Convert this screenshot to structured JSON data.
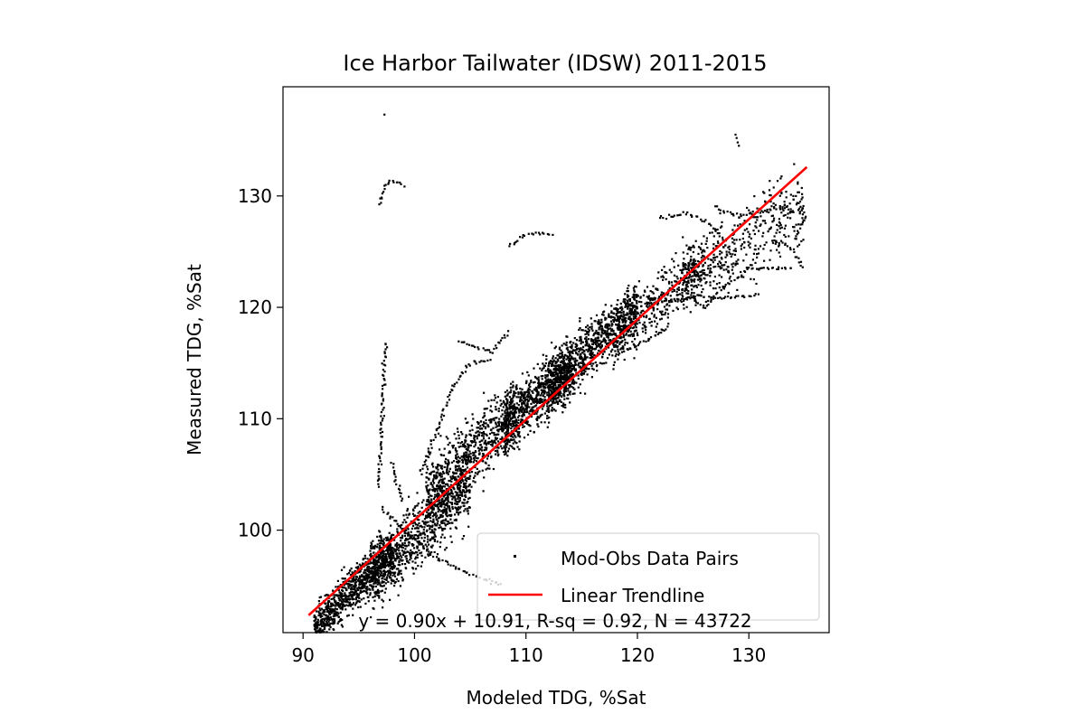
{
  "chart_data": {
    "type": "scatter",
    "title": "Ice Harbor Tailwater (IDSW) 2011-2015",
    "xlabel": "Modeled TDG, %Sat",
    "ylabel": "Measured TDG, %Sat",
    "xlim": [
      88.2,
      137.2
    ],
    "ylim": [
      90.8,
      139.8
    ],
    "xticks": [
      90,
      100,
      110,
      120,
      130
    ],
    "yticks": [
      100,
      110,
      120,
      130
    ],
    "grid": false,
    "legend_position": "bottom-right",
    "legend": {
      "scatter_label": "Mod-Obs Data Pairs",
      "trend_label": "Linear Trendline"
    },
    "scatter_color": "#000000",
    "trend_color": "#ff0000",
    "annotation": "y = 0.90x + 10.91, R-sq = 0.92, N = 43722",
    "trendline": {
      "slope": 0.9,
      "intercept": 10.91,
      "x_start": 90.5,
      "x_end": 135.2
    },
    "series": [
      {
        "name": "Mod-Obs Data Pairs",
        "clusters": [
          {
            "x_range": [
              91,
              98
            ],
            "slope": 0.98,
            "intercept": 2.0,
            "spread": 1.4,
            "n": 900
          },
          {
            "x_range": [
              96,
              105
            ],
            "slope": 0.95,
            "intercept": 4.5,
            "spread": 2.2,
            "n": 900
          },
          {
            "x_range": [
              101,
              109
            ],
            "slope": 0.95,
            "intercept": 7.0,
            "spread": 2.3,
            "n": 700
          },
          {
            "x_range": [
              108,
              114
            ],
            "slope": 0.9,
            "intercept": 12.0,
            "spread": 1.8,
            "n": 800
          },
          {
            "x_range": [
              112,
              120
            ],
            "slope": 0.9,
            "intercept": 12.0,
            "spread": 1.8,
            "n": 900
          },
          {
            "x_range": [
              118,
              126
            ],
            "slope": 0.85,
            "intercept": 17.0,
            "spread": 1.8,
            "n": 400
          },
          {
            "x_range": [
              124,
              135
            ],
            "slope": 0.6,
            "intercept": 48.0,
            "spread": 2.5,
            "n": 400
          }
        ],
        "paths": [
          {
            "points": [
              [
                97.0,
                129.2
              ],
              [
                97.3,
                130.8
              ],
              [
                97.8,
                131.3
              ],
              [
                98.5,
                131.2
              ],
              [
                99.2,
                130.8
              ]
            ]
          },
          {
            "points": [
              [
                96.8,
                104.0
              ],
              [
                97.0,
                108.0
              ],
              [
                97.2,
                113.0
              ],
              [
                97.4,
                117.0
              ]
            ]
          },
          {
            "points": [
              [
                100.5,
                105.0
              ],
              [
                102.0,
                109.0
              ],
              [
                103.5,
                113.0
              ],
              [
                105.0,
                115.0
              ],
              [
                107.0,
                115.3
              ]
            ]
          },
          {
            "points": [
              [
                104.0,
                117.0
              ],
              [
                105.5,
                116.5
              ],
              [
                107.0,
                116.0
              ],
              [
                108.5,
                118.0
              ]
            ]
          },
          {
            "points": [
              [
                108.5,
                125.5
              ],
              [
                110.0,
                126.5
              ],
              [
                111.5,
                126.7
              ],
              [
                112.5,
                126.4
              ]
            ]
          },
          {
            "points": [
              [
                97.0,
                102.0
              ],
              [
                99.0,
                100.0
              ],
              [
                102.0,
                97.5
              ],
              [
                105.0,
                96.0
              ],
              [
                108.0,
                95.0
              ]
            ]
          },
          {
            "points": [
              [
                98.0,
                106.0
              ],
              [
                98.5,
                104.0
              ],
              [
                99.0,
                102.5
              ]
            ]
          },
          {
            "points": [
              [
                116.0,
                119.0
              ],
              [
                118.5,
                116.0
              ],
              [
                121.0,
                117.0
              ],
              [
                123.0,
                118.5
              ]
            ]
          },
          {
            "points": [
              [
                120.0,
                121.0
              ],
              [
                123.0,
                120.5
              ],
              [
                125.5,
                121.0
              ],
              [
                128.5,
                120.8
              ],
              [
                131.0,
                121.2
              ]
            ]
          },
          {
            "points": [
              [
                124.0,
                121.5
              ],
              [
                126.0,
                120.0
              ],
              [
                128.0,
                122.0
              ],
              [
                130.0,
                123.5
              ],
              [
                134.0,
                123.5
              ]
            ]
          },
          {
            "points": [
              [
                122.0,
                128.0
              ],
              [
                124.5,
                128.5
              ],
              [
                126.5,
                127.5
              ],
              [
                128.5,
                125.0
              ]
            ]
          },
          {
            "points": [
              [
                127.0,
                129.0
              ],
              [
                129.0,
                128.2
              ],
              [
                131.0,
                128.5
              ],
              [
                133.5,
                129.2
              ]
            ]
          },
          {
            "points": [
              [
                132.0,
                126.0
              ],
              [
                133.5,
                125.5
              ],
              [
                135.0,
                123.5
              ]
            ]
          },
          {
            "points": [
              [
                134.5,
                129.5
              ],
              [
                135.0,
                128.0
              ],
              [
                134.0,
                126.0
              ]
            ]
          }
        ],
        "outliers": [
          [
            97.3,
            137.3
          ],
          [
            128.9,
            135.2
          ],
          [
            128.8,
            135.5
          ],
          [
            129.0,
            134.8
          ],
          [
            129.1,
            134.5
          ],
          [
            119.2,
            121.0
          ]
        ]
      }
    ]
  }
}
